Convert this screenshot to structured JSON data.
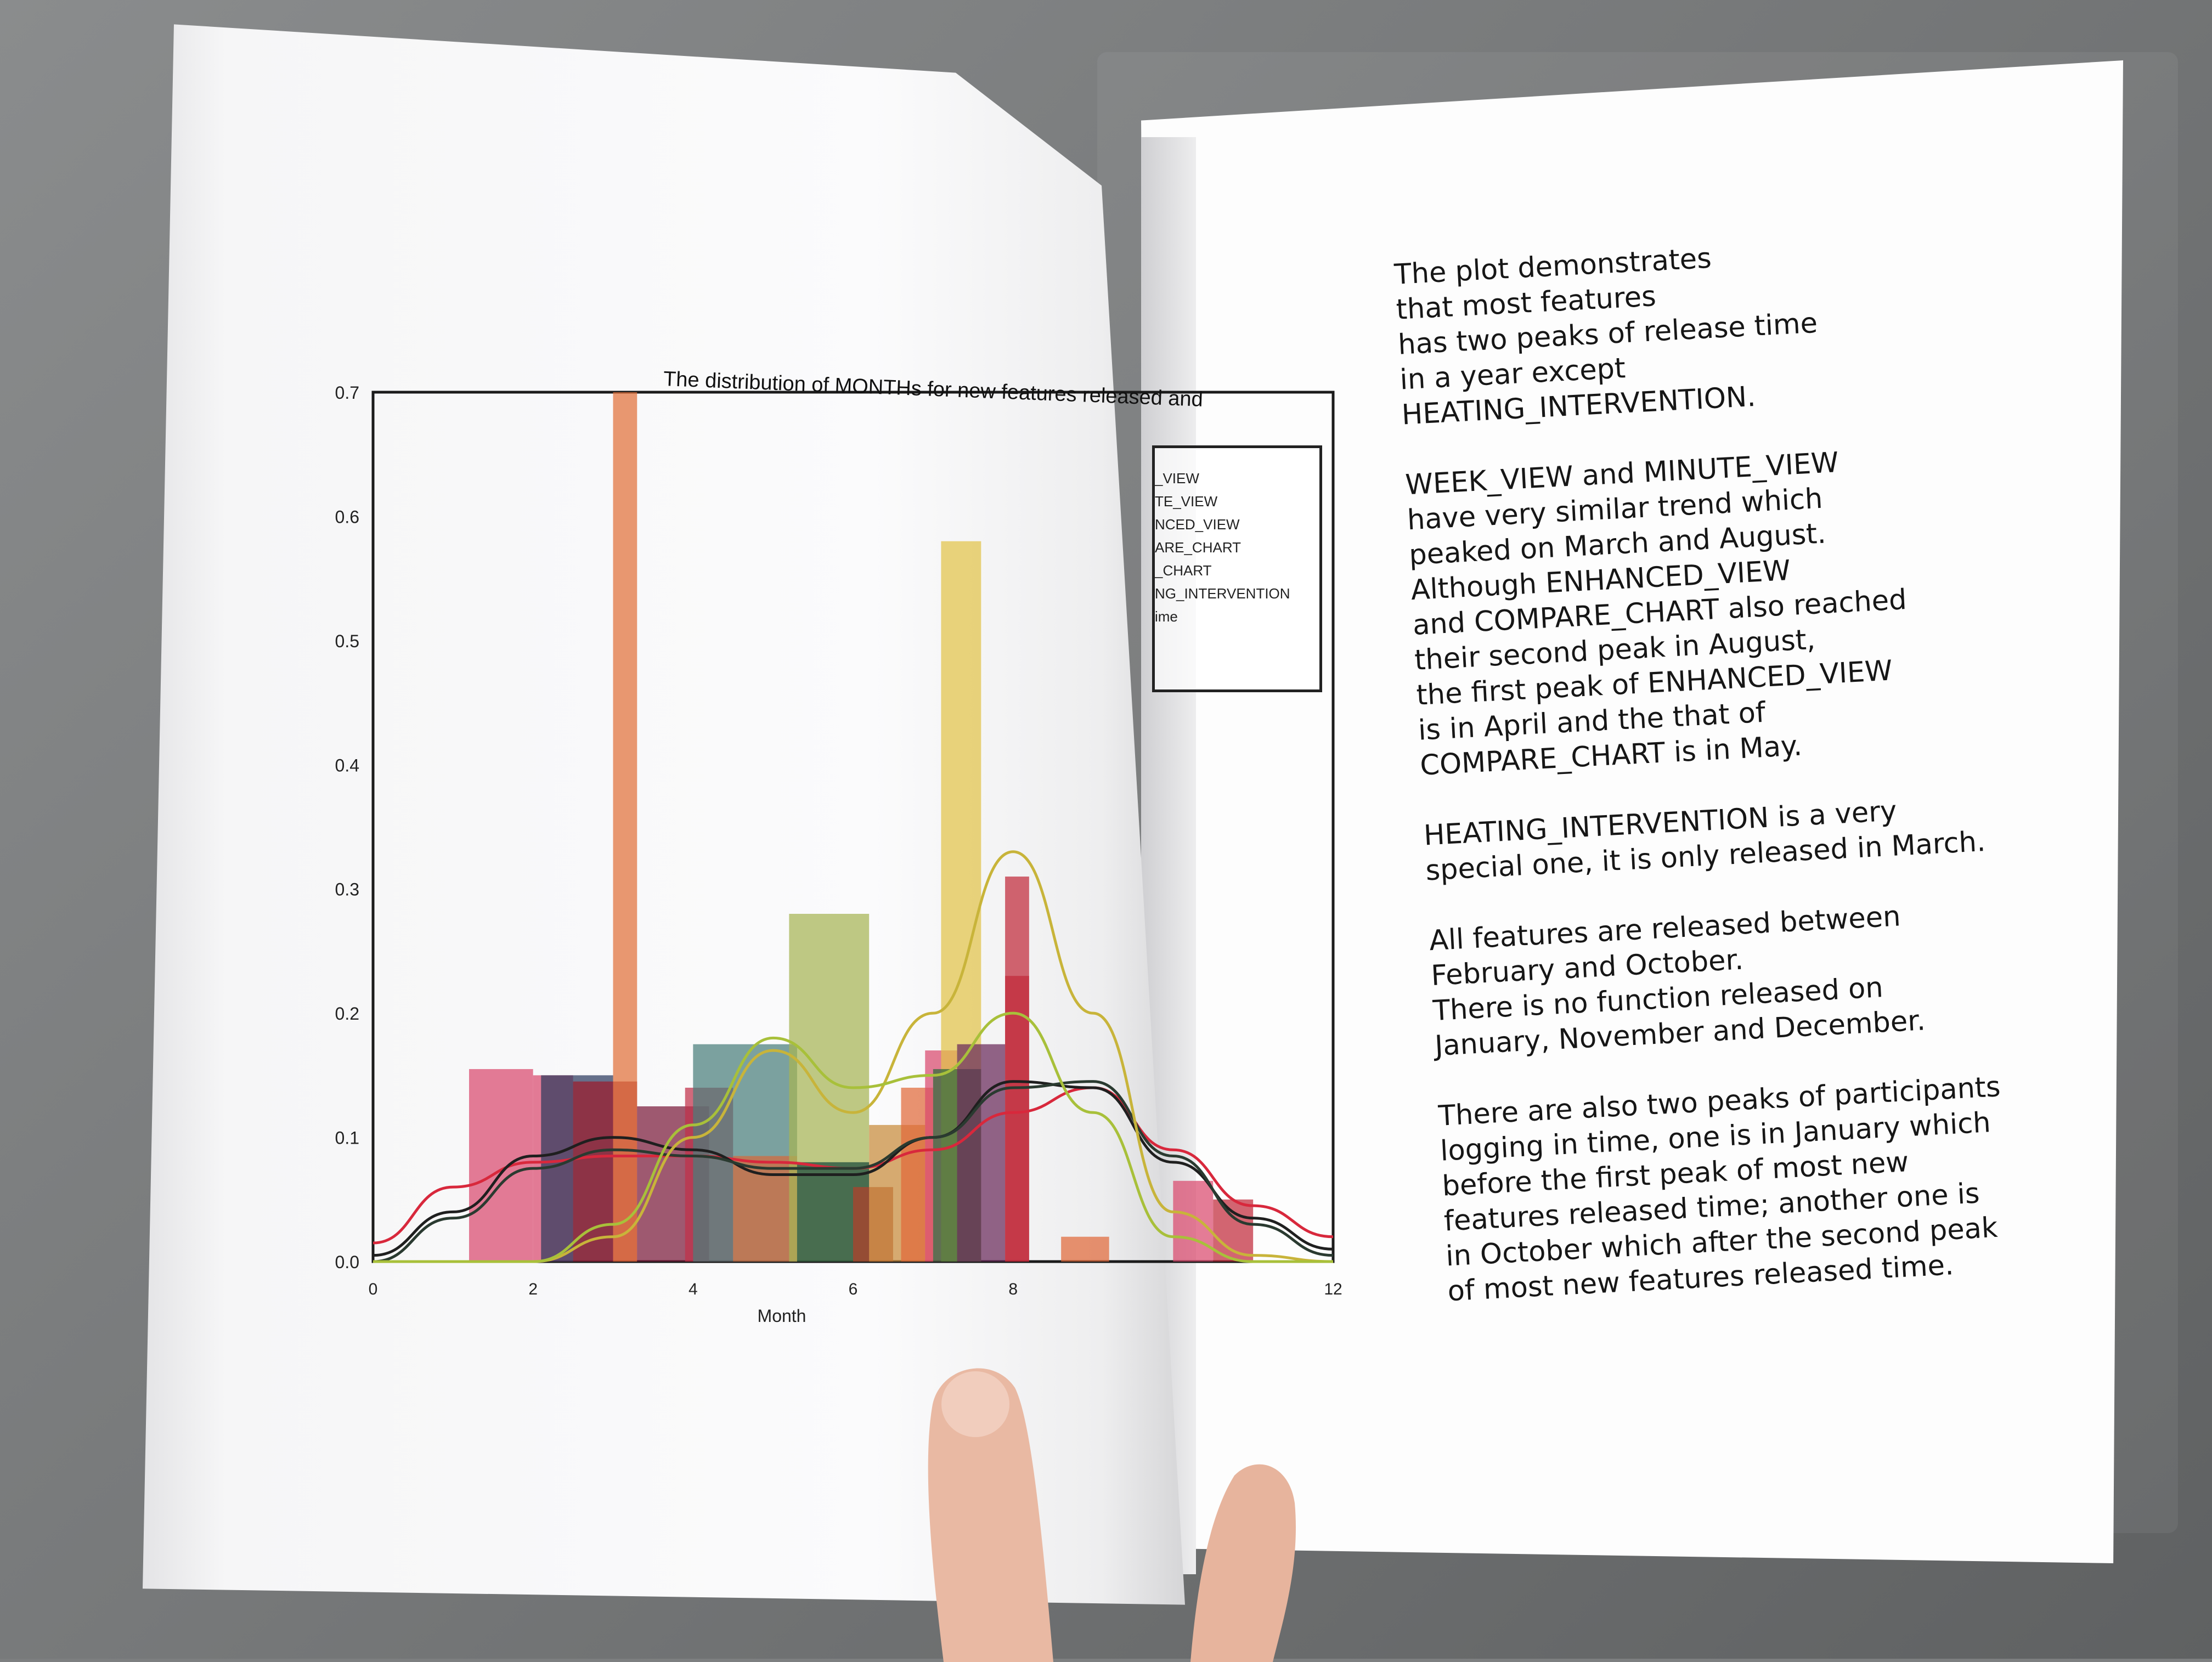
{
  "chart_data": {
    "type": "bar",
    "title": "The distribution of MONTHs for new features released and",
    "xlabel": "Month",
    "ylabel": "",
    "xlim": [
      0,
      12
    ],
    "ylim": [
      0,
      0.7
    ],
    "x_ticks": [
      "0",
      "2",
      "4",
      "6",
      "8",
      "12"
    ],
    "y_ticks": [
      "0.0",
      "0.1",
      "0.2",
      "0.3",
      "0.4",
      "0.5",
      "0.6",
      "0.7"
    ],
    "legend_entries": [
      "_VIEW",
      "TE_VIEW",
      "NCED_VIEW",
      "ARE_CHART",
      "_CHART",
      "NG_INTERVENTION",
      "ime"
    ],
    "legend_placement": "right",
    "bars": [
      {
        "x0": 1.2,
        "x1": 2.0,
        "y": 0.155,
        "color": "#d94a6e"
      },
      {
        "x0": 2.0,
        "x1": 2.5,
        "y": 0.15,
        "color": "#d94a6e"
      },
      {
        "x0": 2.1,
        "x1": 3.0,
        "y": 0.15,
        "color": "#2c3a5e"
      },
      {
        "x0": 2.5,
        "x1": 3.3,
        "y": 0.145,
        "color": "#9c1c2c"
      },
      {
        "x0": 3.0,
        "x1": 3.3,
        "y": 0.7,
        "color": "#e0703a"
      },
      {
        "x0": 3.3,
        "x1": 4.2,
        "y": 0.125,
        "color": "#7a1a3a"
      },
      {
        "x0": 3.9,
        "x1": 4.5,
        "y": 0.14,
        "color": "#c0304a"
      },
      {
        "x0": 4.0,
        "x1": 5.3,
        "y": 0.175,
        "color": "#4a7e7c"
      },
      {
        "x0": 4.5,
        "x1": 5.3,
        "y": 0.085,
        "color": "#d66a3c"
      },
      {
        "x0": 5.2,
        "x1": 6.2,
        "y": 0.28,
        "color": "#a6b454"
      },
      {
        "x0": 5.3,
        "x1": 6.2,
        "y": 0.08,
        "color": "#1a4a3c"
      },
      {
        "x0": 6.0,
        "x1": 6.5,
        "y": 0.06,
        "color": "#b3402a"
      },
      {
        "x0": 6.2,
        "x1": 6.9,
        "y": 0.11,
        "color": "#c88a3a"
      },
      {
        "x0": 6.6,
        "x1": 7.0,
        "y": 0.14,
        "color": "#e06a3a"
      },
      {
        "x0": 6.9,
        "x1": 7.3,
        "y": 0.17,
        "color": "#d94a6e"
      },
      {
        "x0": 7.1,
        "x1": 7.6,
        "y": 0.58,
        "color": "#e2c44a"
      },
      {
        "x0": 7.0,
        "x1": 7.6,
        "y": 0.155,
        "color": "#2e6a3a"
      },
      {
        "x0": 7.3,
        "x1": 7.9,
        "y": 0.175,
        "color": "#6a2a5a"
      },
      {
        "x0": 7.9,
        "x1": 8.2,
        "y": 0.23,
        "color": "#c02a3a"
      },
      {
        "x0": 7.9,
        "x1": 8.2,
        "y": 0.31,
        "color": "#c02a3a"
      },
      {
        "x0": 8.6,
        "x1": 9.2,
        "y": 0.02,
        "color": "#e06a3a"
      },
      {
        "x0": 10.0,
        "x1": 10.5,
        "y": 0.065,
        "color": "#d94a6e"
      },
      {
        "x0": 10.5,
        "x1": 11.0,
        "y": 0.05,
        "color": "#c02a3a"
      }
    ],
    "series": [
      {
        "color": "#d8283c",
        "x": [
          0,
          1,
          2,
          3,
          4,
          5,
          6,
          7,
          8,
          9,
          10,
          11,
          12
        ],
        "values": [
          0.015,
          0.06,
          0.08,
          0.085,
          0.085,
          0.08,
          0.075,
          0.09,
          0.12,
          0.14,
          0.09,
          0.045,
          0.02
        ]
      },
      {
        "color": "#1f1f1f",
        "x": [
          0,
          1,
          2,
          3,
          4,
          5,
          6,
          7,
          8,
          9,
          10,
          11,
          12
        ],
        "values": [
          0.005,
          0.04,
          0.085,
          0.1,
          0.09,
          0.07,
          0.07,
          0.1,
          0.145,
          0.14,
          0.08,
          0.035,
          0.01
        ]
      },
      {
        "color": "#2a3a30",
        "x": [
          0,
          1,
          2,
          3,
          4,
          5,
          6,
          7,
          8,
          9,
          10,
          11,
          12
        ],
        "values": [
          0.0,
          0.035,
          0.075,
          0.09,
          0.085,
          0.075,
          0.075,
          0.1,
          0.14,
          0.145,
          0.085,
          0.03,
          0.005
        ]
      },
      {
        "color": "#c8b43a",
        "x": [
          0,
          1,
          2,
          3,
          4,
          5,
          6,
          7,
          8,
          9,
          10,
          11,
          12
        ],
        "values": [
          0,
          0,
          0.0,
          0.02,
          0.1,
          0.17,
          0.12,
          0.2,
          0.33,
          0.2,
          0.04,
          0.005,
          0
        ]
      },
      {
        "color": "#a8c03a",
        "x": [
          0,
          1,
          2,
          3,
          4,
          5,
          6,
          7,
          8,
          9,
          10,
          11,
          12
        ],
        "values": [
          0,
          0,
          0.0,
          0.03,
          0.11,
          0.18,
          0.14,
          0.15,
          0.2,
          0.12,
          0.02,
          0,
          0
        ]
      }
    ]
  },
  "notes": [
    "The plot demonstrates\nthat most features\nhas two peaks of release time\nin a year except\nHEATING_INTERVENTION.",
    "WEEK_VIEW and MINUTE_VIEW\nhave very similar trend which\npeaked on March and August.\nAlthough ENHANCED_VIEW\nand COMPARE_CHART also reached\ntheir second peak in August,\nthe first peak of ENHANCED_VIEW\nis in April and the that of\nCOMPARE_CHART is in May.",
    "HEATING_INTERVENTION is a very\nspecial one, it is only released in March.",
    "All features are released between\nFebruary and October.\nThere is no function released on\nJanuary, November and December.",
    "There are also two peaks of participants\nlogging in time, one is in January which\nbefore the first peak of most new\nfeatures released time; another one is\nin October which after the second peak\nof most new features released time."
  ]
}
